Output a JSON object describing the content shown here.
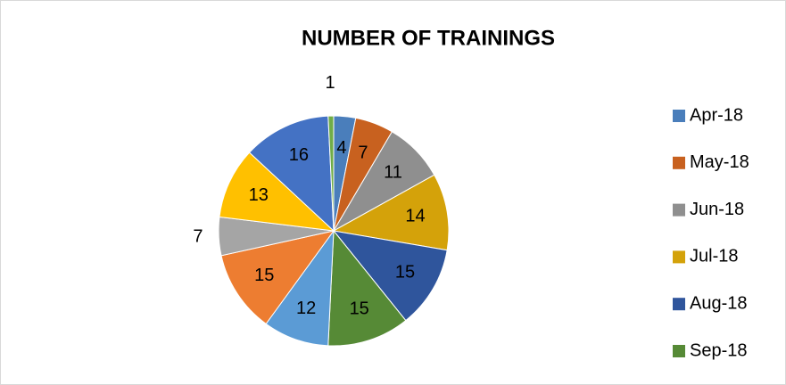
{
  "chart_data": {
    "type": "pie",
    "title": "NUMBER OF TRAININGS",
    "categories": [
      "Apr-18",
      "May-18",
      "Jun-18",
      "Jul-18",
      "Aug-18",
      "Sep-18",
      null,
      null,
      null,
      null,
      null,
      null
    ],
    "values": [
      4,
      7,
      11,
      14,
      15,
      15,
      12,
      15,
      7,
      13,
      16,
      1
    ],
    "colors": [
      "#4a7ebb",
      "#c8611f",
      "#8f8f8f",
      "#d4a20a",
      "#2f559c",
      "#568a36",
      "#5b9bd5",
      "#ed7d31",
      "#a5a5a5",
      "#ffc000",
      "#4472c4",
      "#70ad47"
    ],
    "legend": "right"
  }
}
